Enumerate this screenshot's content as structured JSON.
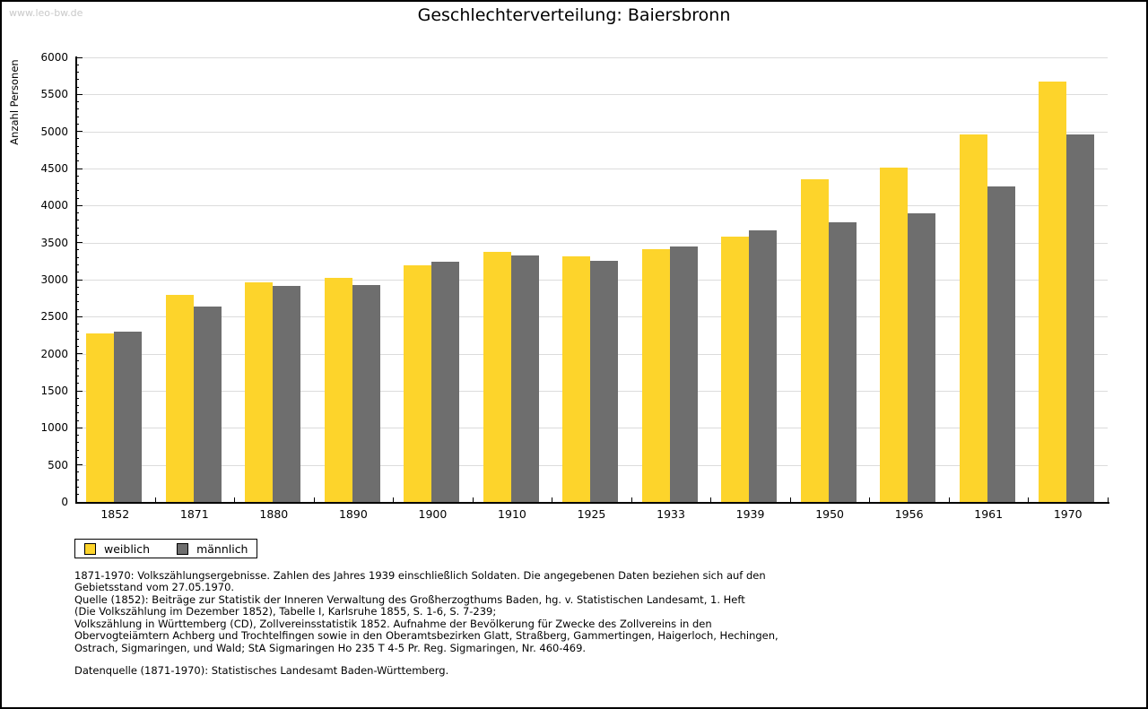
{
  "watermark": "www.leo-bw.de",
  "chart_data": {
    "type": "bar",
    "title": "Geschlechterverteilung: Baiersbronn",
    "xlabel": "",
    "ylabel": "Anzahl Personen",
    "categories": [
      "1852",
      "1871",
      "1880",
      "1890",
      "1900",
      "1910",
      "1925",
      "1933",
      "1939",
      "1950",
      "1956",
      "1961",
      "1970"
    ],
    "series": [
      {
        "name": "weiblich",
        "color": "#FDD42B",
        "values": [
          2280,
          2800,
          2960,
          3020,
          3190,
          3380,
          3320,
          3410,
          3580,
          4360,
          4510,
          4960,
          5670
        ]
      },
      {
        "name": "männlich",
        "color": "#6E6E6E",
        "values": [
          2300,
          2640,
          2920,
          2930,
          3240,
          3330,
          3250,
          3450,
          3660,
          3770,
          3890,
          4260,
          4960
        ]
      }
    ],
    "ylim": [
      0,
      6000
    ],
    "ytick_step": 500,
    "minor_tick_step": 100,
    "grid": true,
    "legend_position": "bottom-left"
  },
  "colors": {
    "weiblich": "#FDD42B",
    "maennlich": "#6E6E6E",
    "gridline": "#DCDCDC",
    "watermark": "#C9C9C9"
  },
  "footer": {
    "source_note": "1871-1970: Volkszählungsergebnisse. Zahlen des Jahres 1939 einschließlich Soldaten. Die angegebenen Daten beziehen sich auf den\nGebietsstand vom 27.05.1970.\nQuelle (1852): Beiträge zur Statistik der Inneren Verwaltung des Großherzogthums Baden, hg. v. Statistischen Landesamt, 1. Heft\n(Die Volkszählung im Dezember 1852), Tabelle I, Karlsruhe 1855, S. 1-6, S. 7-239;\nVolkszählung in Württemberg (CD), Zollvereinsstatistik 1852. Aufnahme der Bevölkerung für Zwecke des Zollvereins in den\nObervogteiämtern Achberg und Trochtelfingen sowie in den Oberamtsbezirken Glatt, Straßberg, Gammertingen, Haigerloch, Hechingen,\nOstrach, Sigmaringen, und Wald; StA Sigmaringen Ho 235 T 4-5 Pr. Reg. Sigmaringen, Nr. 460-469.",
    "data_source": "Datenquelle (1871-1970): Statistisches Landesamt Baden-Württemberg."
  }
}
